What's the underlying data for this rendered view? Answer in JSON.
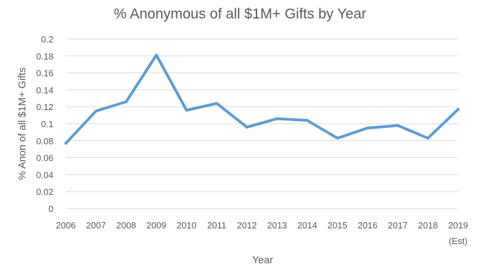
{
  "chart_data": {
    "type": "line",
    "title": "% Anonymous of all $1M+ Gifts by Year",
    "xlabel": "Year",
    "ylabel": "% Anon of all $1M+ Gifts",
    "categories": [
      "2006",
      "2007",
      "2008",
      "2009",
      "2010",
      "2011",
      "2012",
      "2013",
      "2014",
      "2015",
      "2016",
      "2017",
      "2018",
      "2019"
    ],
    "category_sublabels": [
      "",
      "",
      "",
      "",
      "",
      "",
      "",
      "",
      "",
      "",
      "",
      "",
      "",
      "(Est)"
    ],
    "y_ticks": [
      "0",
      "0.02",
      "0.04",
      "0.06",
      "0.08",
      "0.1",
      "0.12",
      "0.14",
      "0.16",
      "0.18",
      "0.2"
    ],
    "ylim": [
      0,
      0.2
    ],
    "grid": true,
    "legend": "none",
    "series": [
      {
        "color": "#5b9bd5",
        "values": [
          0.077,
          0.115,
          0.126,
          0.181,
          0.116,
          0.124,
          0.096,
          0.106,
          0.104,
          0.083,
          0.095,
          0.098,
          0.083,
          0.117
        ]
      }
    ]
  }
}
